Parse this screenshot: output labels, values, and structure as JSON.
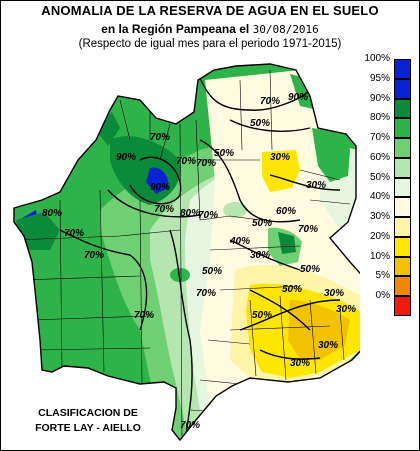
{
  "title": {
    "line1": "ANOMALIA DE LA RESERVA DE AGUA EN EL SUELO",
    "line2_prefix": "en la Región Pampeana el",
    "date": "30/08/2016",
    "line3": "(Respecto de igual mes para el periodo 1971-2015)"
  },
  "legend": [
    {
      "label": "100%",
      "color": "#0a22d6"
    },
    {
      "label": "95%",
      "color": "#0a22d6"
    },
    {
      "label": "90%",
      "color": "#0b8a3a"
    },
    {
      "label": "80%",
      "color": "#2eb34a"
    },
    {
      "label": "70%",
      "color": "#6fcf73"
    },
    {
      "label": "60%",
      "color": "#b6e6b0"
    },
    {
      "label": "50%",
      "color": "#e6f6e0"
    },
    {
      "label": "40%",
      "color": "#fffbe0"
    },
    {
      "label": "30%",
      "color": "#fff4a8"
    },
    {
      "label": "20%",
      "color": "#ffe600"
    },
    {
      "label": "10%",
      "color": "#f2c200"
    },
    {
      "label": "5%",
      "color": "#f08800"
    },
    {
      "label": "0%",
      "color": "#f41a0a"
    }
  ],
  "isolines": [
    "70%",
    "90%",
    "50%",
    "70%",
    "90%",
    "70%",
    "70%",
    "50%",
    "70%",
    "90%",
    "80%",
    "70%",
    "70%",
    "80%",
    "30%",
    "30%",
    "50%",
    "60%",
    "70%",
    "40%",
    "30%",
    "70%",
    "70%",
    "50%",
    "50%",
    "30%",
    "30%",
    "70%",
    "50%",
    "50%",
    "30%",
    "30%",
    "70%"
  ],
  "credit": {
    "line1": "CLASIFICACION DE",
    "line2": "FORTE LAY - AIELLO"
  }
}
